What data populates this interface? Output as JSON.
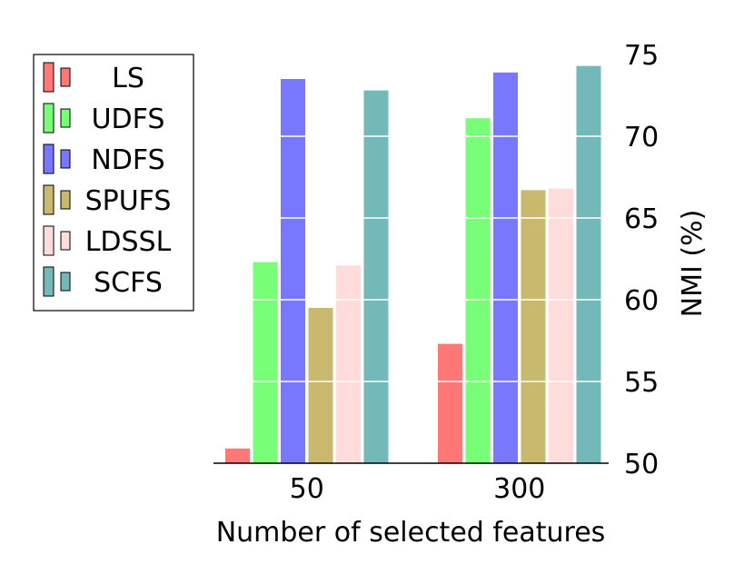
{
  "chart_data": {
    "type": "bar",
    "categories": [
      "50",
      "300"
    ],
    "series": [
      {
        "name": "LS",
        "values": [
          50.9,
          57.3
        ],
        "color": "#ff7878"
      },
      {
        "name": "UDFS",
        "values": [
          62.3,
          71.1
        ],
        "color": "#78ff78"
      },
      {
        "name": "NDFS",
        "values": [
          73.5,
          73.9
        ],
        "color": "#7878ff"
      },
      {
        "name": "SPUFS",
        "values": [
          59.5,
          66.7
        ],
        "color": "#c8b96e"
      },
      {
        "name": "LDSSL",
        "values": [
          62.1,
          66.8
        ],
        "color": "#ffdcdc"
      },
      {
        "name": "SCFS",
        "values": [
          72.8,
          74.3
        ],
        "color": "#73b9b9"
      }
    ],
    "xlabel": "Number of selected features",
    "ylabel": "NMI (%)",
    "ylim": [
      50,
      75
    ],
    "yticks": [
      "50",
      "55",
      "60",
      "65",
      "70",
      "75"
    ],
    "y_axis_side": "right",
    "grid": "white horizontal lines over bars",
    "legend_position": "left"
  }
}
